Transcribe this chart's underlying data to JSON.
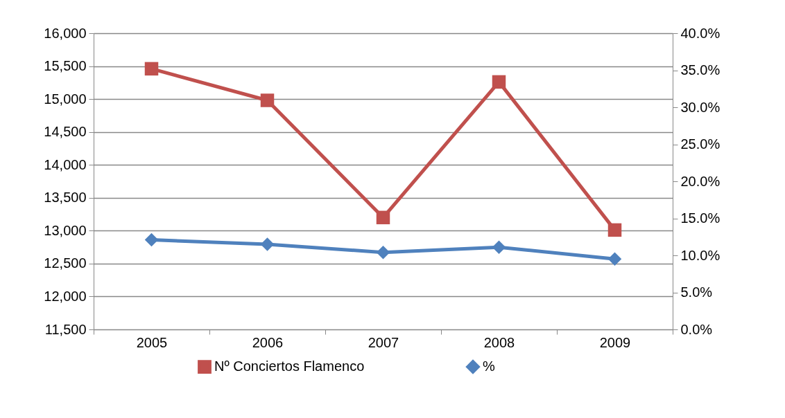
{
  "chart_data": {
    "type": "line",
    "categories": [
      "2005",
      "2006",
      "2007",
      "2008",
      "2009"
    ],
    "series": [
      {
        "name": "Nº Conciertos Flamenco",
        "color": "#c0504d",
        "marker": "square",
        "values": [
          15460,
          14980,
          13200,
          15260,
          13010
        ]
      },
      {
        "name": "%",
        "color": "#4f81bd",
        "marker": "diamond",
        "axis": "y2",
        "values": [
          12.1,
          11.5,
          10.4,
          11.1,
          9.5
        ]
      }
    ],
    "ylim": [
      11500,
      16000
    ],
    "yticks": [
      {
        "value": 11500,
        "label": "11,500"
      },
      {
        "value": 12000,
        "label": "12,000"
      },
      {
        "value": 12500,
        "label": "12,500"
      },
      {
        "value": 13000,
        "label": "13,000"
      },
      {
        "value": 13500,
        "label": "13,500"
      },
      {
        "value": 14000,
        "label": "14,000"
      },
      {
        "value": 14500,
        "label": "14,500"
      },
      {
        "value": 15000,
        "label": "15,000"
      },
      {
        "value": 15500,
        "label": "15,500"
      },
      {
        "value": 16000,
        "label": "16,000"
      }
    ],
    "y2lim": [
      0,
      40
    ],
    "y2ticks": [
      {
        "value": 0,
        "label": "0.0%"
      },
      {
        "value": 5,
        "label": "5.0%"
      },
      {
        "value": 10,
        "label": "10.0%"
      },
      {
        "value": 15,
        "label": "15.0%"
      },
      {
        "value": 20,
        "label": "20.0%"
      },
      {
        "value": 25,
        "label": "25.0%"
      },
      {
        "value": 30,
        "label": "30.0%"
      },
      {
        "value": 35,
        "label": "35.0%"
      },
      {
        "value": 40,
        "label": "40.0%"
      }
    ],
    "grid": "y",
    "legend": "bottom"
  }
}
